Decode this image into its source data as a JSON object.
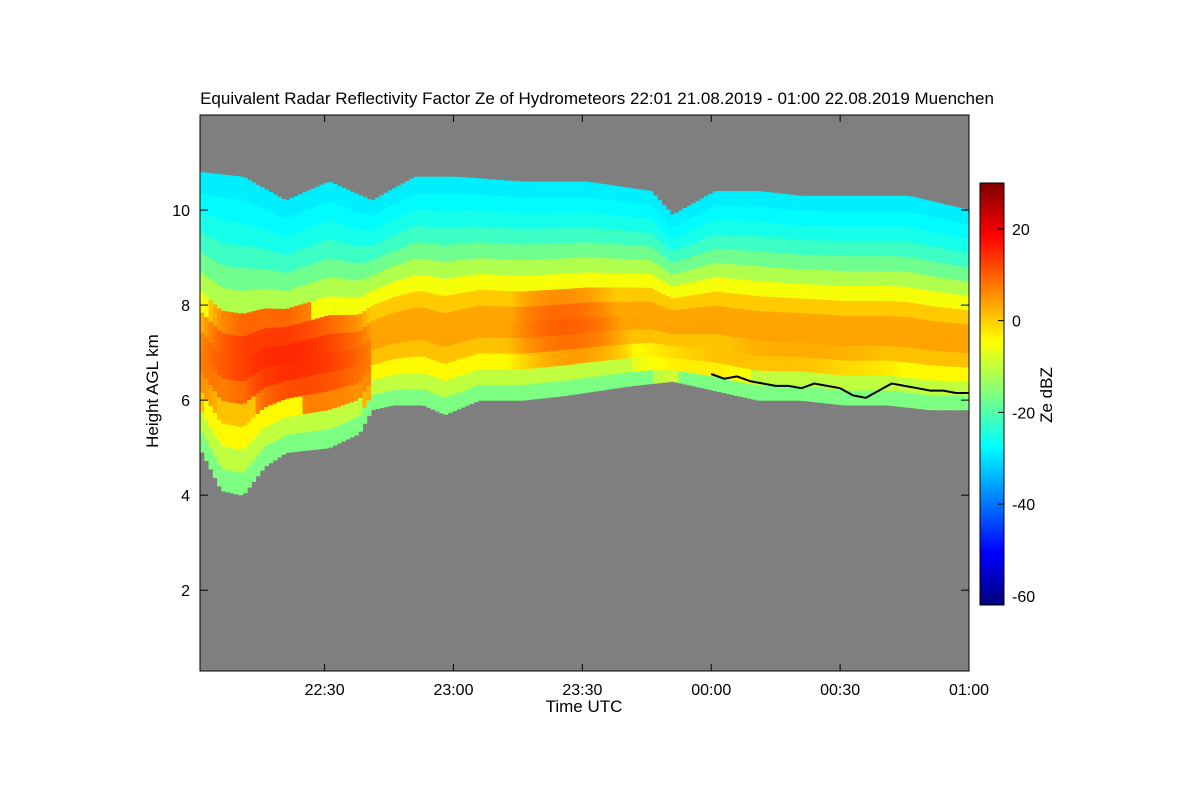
{
  "chart_data": {
    "type": "heatmap",
    "title": "Equivalent Radar Reflectivity Factor Ze of Hydrometeors   22:01 21.08.2019 - 01:00 22.08.2019 Muenchen",
    "xlabel": "Time UTC",
    "ylabel": "Height AGL km",
    "x_ticks": [
      "22:30",
      "23:00",
      "23:30",
      "00:00",
      "00:30",
      "01:00"
    ],
    "x_tick_minutes": [
      29,
      59,
      89,
      119,
      149,
      179
    ],
    "x_range_minutes": [
      0,
      179
    ],
    "y_ticks": [
      2,
      4,
      6,
      8,
      10
    ],
    "ylim": [
      0.3,
      12.0
    ],
    "colorbar": {
      "label": "Ze dBZ",
      "range": [
        -62,
        30
      ],
      "ticks": [
        -60,
        -40,
        -20,
        0,
        20
      ],
      "colormap": [
        "#00007f",
        "#0000ff",
        "#007fff",
        "#00ffff",
        "#7fff7f",
        "#ffff00",
        "#ff7f00",
        "#ff0000",
        "#7f0000"
      ]
    },
    "background_color": "#7f7f7f",
    "cloud_top_km": [
      [
        0,
        10.8
      ],
      [
        10,
        10.7
      ],
      [
        20,
        10.2
      ],
      [
        30,
        10.6
      ],
      [
        40,
        10.2
      ],
      [
        50,
        10.7
      ],
      [
        60,
        10.7
      ],
      [
        75,
        10.6
      ],
      [
        90,
        10.6
      ],
      [
        105,
        10.4
      ],
      [
        110,
        9.9
      ],
      [
        120,
        10.4
      ],
      [
        130,
        10.4
      ],
      [
        140,
        10.3
      ],
      [
        155,
        10.3
      ],
      [
        165,
        10.3
      ],
      [
        179,
        10.0
      ]
    ],
    "cloud_base_km": [
      [
        0,
        5.0
      ],
      [
        5,
        4.1
      ],
      [
        10,
        4.0
      ],
      [
        15,
        4.6
      ],
      [
        20,
        4.9
      ],
      [
        30,
        5.0
      ],
      [
        37,
        5.3
      ],
      [
        40,
        5.8
      ],
      [
        45,
        5.9
      ],
      [
        52,
        5.9
      ],
      [
        57,
        5.7
      ],
      [
        65,
        6.0
      ],
      [
        75,
        6.0
      ],
      [
        85,
        6.1
      ],
      [
        100,
        6.3
      ],
      [
        110,
        6.4
      ],
      [
        120,
        6.2
      ],
      [
        130,
        6.0
      ],
      [
        140,
        6.0
      ],
      [
        150,
        5.9
      ],
      [
        160,
        5.9
      ],
      [
        170,
        5.8
      ],
      [
        179,
        5.8
      ]
    ],
    "reflectivity_core": [
      {
        "t_start": 0,
        "t_end": 40,
        "h_bottom": 5.9,
        "h_top": 7.9,
        "dbz": 15
      },
      {
        "t_start": 70,
        "t_end": 100,
        "h_bottom": 6.8,
        "h_top": 8.4,
        "dbz": 10
      },
      {
        "t_start": 100,
        "t_end": 179,
        "h_bottom": 6.5,
        "h_top": 7.6,
        "dbz": 3
      }
    ],
    "line_series": {
      "x_minutes": [
        119,
        122,
        125,
        128,
        131,
        134,
        137,
        140,
        143,
        146,
        149,
        152,
        155,
        158,
        161,
        164,
        167,
        170,
        173,
        176,
        179
      ],
      "y_km": [
        6.55,
        6.45,
        6.5,
        6.4,
        6.35,
        6.3,
        6.3,
        6.25,
        6.35,
        6.3,
        6.25,
        6.1,
        6.05,
        6.2,
        6.35,
        6.3,
        6.25,
        6.2,
        6.2,
        6.15,
        6.15
      ],
      "color": "#000000"
    },
    "grid": false
  }
}
